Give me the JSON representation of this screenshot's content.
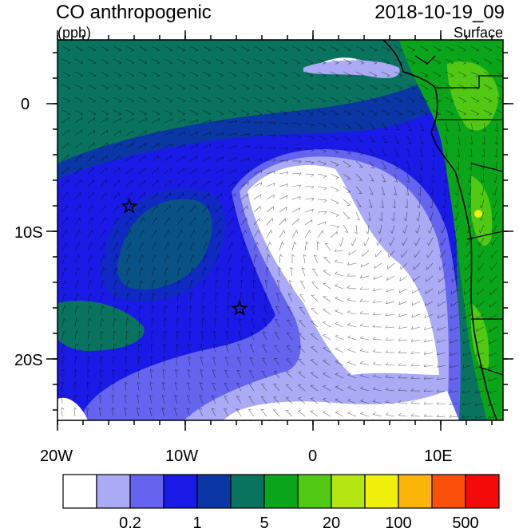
{
  "header": {
    "title": "CO anthropogenic",
    "units": "(ppb)",
    "datetime": "2018-10-19_09",
    "level": "Surface"
  },
  "axes": {
    "x_ticks": [
      "20W",
      "10W",
      "0",
      "10E"
    ],
    "y_ticks": [
      "0",
      "10S",
      "20S"
    ]
  },
  "colorbar": {
    "colors": [
      "#ffffff",
      "#aaaaf5",
      "#6464ee",
      "#1a1ae6",
      "#0a37a5",
      "#0a7360",
      "#0aa51a",
      "#50c814",
      "#b4e614",
      "#f0f00a",
      "#fab40a",
      "#fa500a",
      "#f50a0a"
    ],
    "labels": [
      "0.2",
      "1",
      "5",
      "20",
      "100",
      "500"
    ]
  },
  "markers": [
    "star",
    "star"
  ],
  "colors": {
    "ocean_far": "#0a7360",
    "ocean_mid": "#0a37a5",
    "plume_blue": "#1a1ae6",
    "plume_light": "#6464ee",
    "plume_lighter": "#aaaaf5",
    "plume_core": "#ffffff",
    "land_green": "#0aa51a",
    "land_light": "#50c814",
    "land_yellow": "#f0f00a"
  }
}
